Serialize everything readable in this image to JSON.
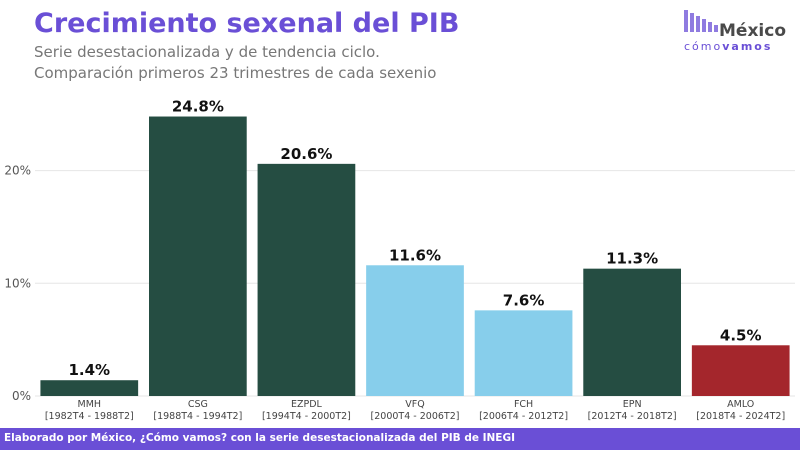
{
  "header": {
    "title": "Crecimiento sexenal del PIB",
    "subtitle_line1": "Serie desestacionalizada y de tendencia ciclo.",
    "subtitle_line2": "Comparación primeros 23 trimestres de cada sexenio"
  },
  "logo": {
    "word": "México",
    "sub_prefix": "cómo",
    "sub_suffix": "vamos"
  },
  "footer": {
    "text": "Elaborado por México, ¿Cómo vamos? con la serie desestacionalizada del PIB de INEGI"
  },
  "colors": {
    "accent": "#6a4fd6",
    "dark_green": "#254d42",
    "light_blue": "#87ceeb",
    "red": "#a4262c",
    "grid": "#e6e6e6"
  },
  "chart_data": {
    "type": "bar",
    "title": "Crecimiento sexenal del PIB",
    "subtitle": "Serie desestacionalizada y de tendencia ciclo. Comparación primeros 23 trimestres de cada sexenio",
    "categories": [
      "MMH",
      "CSG",
      "EZPDL",
      "VFQ",
      "FCH",
      "EPN",
      "AMLO"
    ],
    "periods": [
      "[1982T4 - 1988T2]",
      "[1988T4 - 1994T2]",
      "[1994T4 - 2000T2]",
      "[2000T4 - 2006T2]",
      "[2006T4 - 2012T2]",
      "[2012T4 - 2018T2]",
      "[2018T4 - 2024T2]"
    ],
    "values": [
      1.4,
      24.8,
      20.6,
      11.6,
      7.6,
      11.3,
      4.5
    ],
    "data_labels": [
      "1.4%",
      "24.8%",
      "20.6%",
      "11.6%",
      "7.6%",
      "11.3%",
      "4.5%"
    ],
    "bar_colors": [
      "#254d42",
      "#254d42",
      "#254d42",
      "#87ceeb",
      "#87ceeb",
      "#254d42",
      "#a4262c"
    ],
    "yticks": [
      0,
      10,
      20
    ],
    "ytick_labels": [
      "0%",
      "10%",
      "20%"
    ],
    "ylim": [
      0,
      26
    ],
    "grid": true,
    "legend": false
  }
}
